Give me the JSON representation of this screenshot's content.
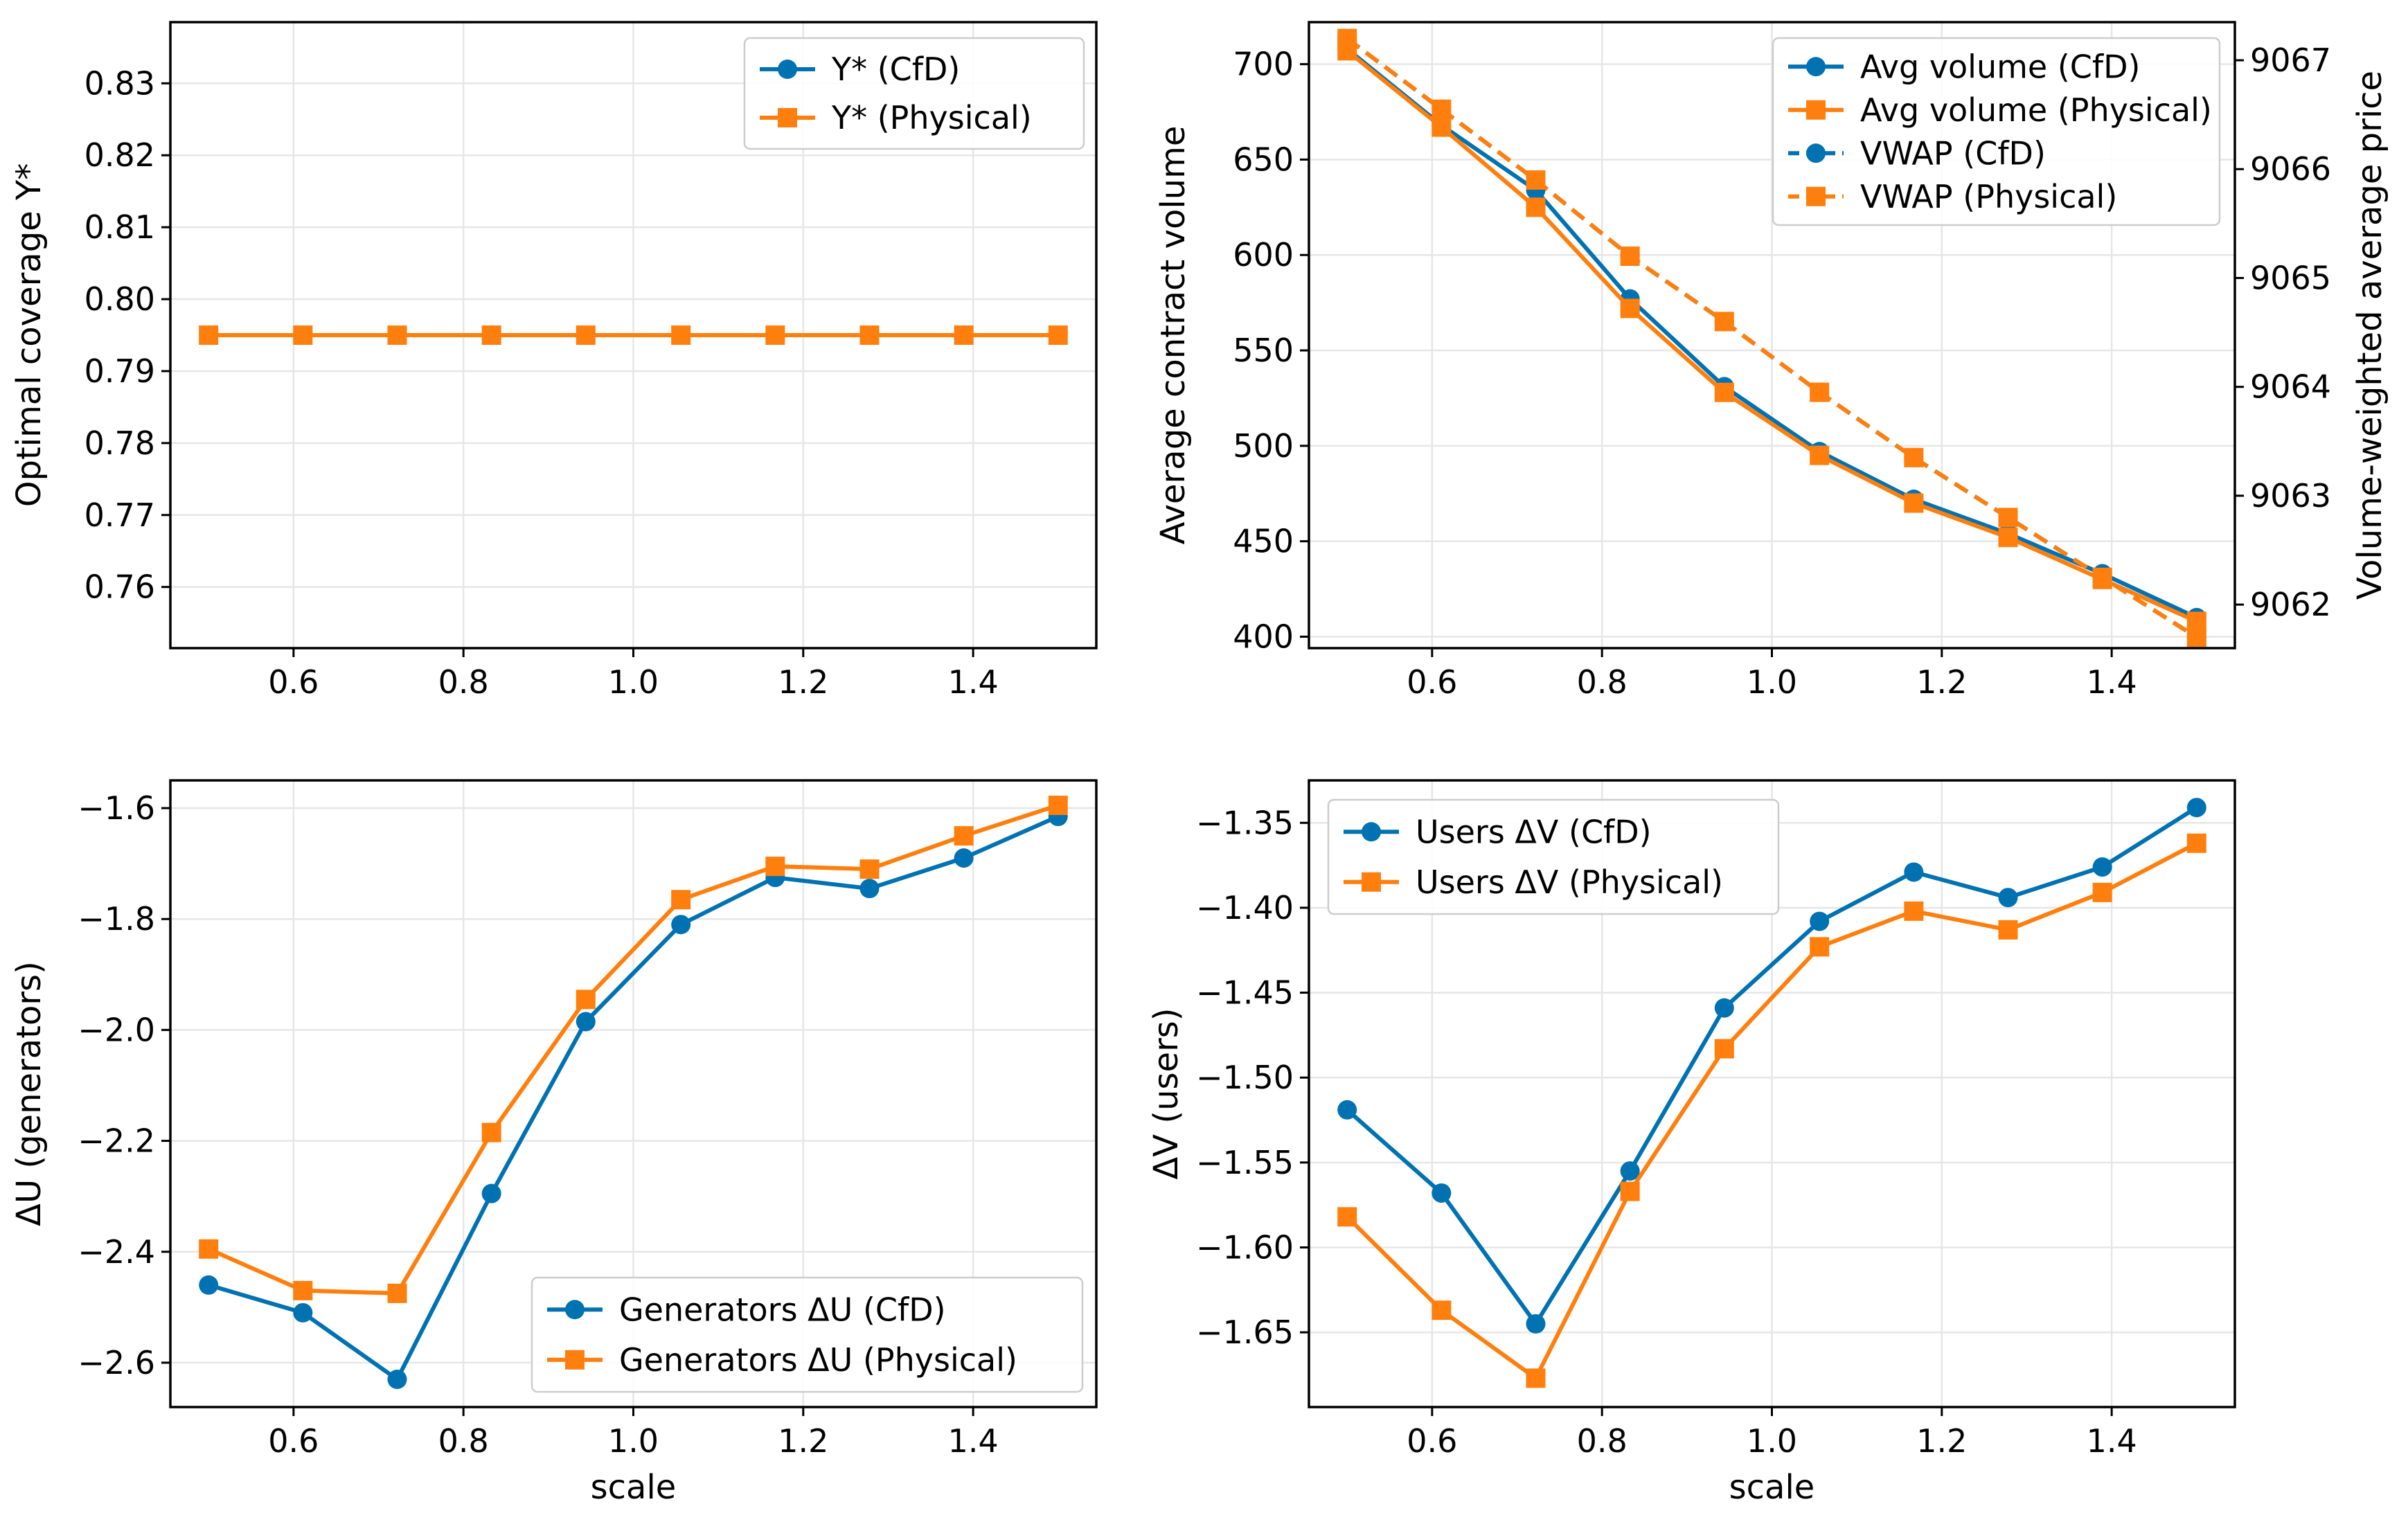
{
  "colors": {
    "cfd": "#0072B2",
    "physical": "#FF7F0E",
    "grid": "#e6e6e6"
  },
  "chart_data": [
    {
      "id": "coverage",
      "type": "line",
      "title": "",
      "xlabel": "",
      "ylabel": "Optimal coverage Y*",
      "xlim": [
        0.455,
        1.545
      ],
      "ylim": [
        0.7515,
        0.8385
      ],
      "xticks": [
        0.6,
        0.8,
        1.0,
        1.2,
        1.4
      ],
      "xtick_labels": [
        "0.6",
        "0.8",
        "1.0",
        "1.2",
        "1.4"
      ],
      "yticks": [
        0.76,
        0.77,
        0.78,
        0.79,
        0.8,
        0.81,
        0.82,
        0.83
      ],
      "ytick_labels": [
        "0.76",
        "0.77",
        "0.78",
        "0.79",
        "0.80",
        "0.81",
        "0.82",
        "0.83"
      ],
      "legend_position": "top-right",
      "x": [
        0.5,
        0.611,
        0.722,
        0.833,
        0.944,
        1.056,
        1.167,
        1.278,
        1.389,
        1.5
      ],
      "series": [
        {
          "name": "Y* (CfD)",
          "color_key": "cfd",
          "marker": "circle",
          "dash": false,
          "axis": "left",
          "values": [
            0.795,
            0.795,
            0.795,
            0.795,
            0.795,
            0.795,
            0.795,
            0.795,
            0.795,
            0.795
          ]
        },
        {
          "name": "Y* (Physical)",
          "color_key": "physical",
          "marker": "square",
          "dash": false,
          "axis": "left",
          "values": [
            0.795,
            0.795,
            0.795,
            0.795,
            0.795,
            0.795,
            0.795,
            0.795,
            0.795,
            0.795
          ]
        }
      ]
    },
    {
      "id": "volume",
      "type": "line",
      "title": "",
      "xlabel": "",
      "ylabel": "Average contract volume",
      "y2label": "Volume-weighted average price",
      "xlim": [
        0.455,
        1.545
      ],
      "ylim": [
        394,
        722
      ],
      "y2lim": [
        9061.6,
        9067.35
      ],
      "xticks": [
        0.6,
        0.8,
        1.0,
        1.2,
        1.4
      ],
      "xtick_labels": [
        "0.6",
        "0.8",
        "1.0",
        "1.2",
        "1.4"
      ],
      "yticks": [
        400,
        450,
        500,
        550,
        600,
        650,
        700
      ],
      "ytick_labels": [
        "400",
        "450",
        "500",
        "550",
        "600",
        "650",
        "700"
      ],
      "y2ticks": [
        9062,
        9063,
        9064,
        9065,
        9066,
        9067
      ],
      "y2tick_labels": [
        "9062",
        "9063",
        "9064",
        "9065",
        "9066",
        "9067"
      ],
      "legend_position": "top-right",
      "x": [
        0.5,
        0.611,
        0.722,
        0.833,
        0.944,
        1.056,
        1.167,
        1.278,
        1.389,
        1.5
      ],
      "series": [
        {
          "name": "Avg volume (CfD)",
          "color_key": "cfd",
          "marker": "circle",
          "dash": false,
          "axis": "left",
          "values": [
            708,
            668,
            634,
            577,
            531,
            497,
            472,
            454,
            433,
            410
          ]
        },
        {
          "name": "Avg volume (Physical)",
          "color_key": "physical",
          "marker": "square",
          "dash": false,
          "axis": "left",
          "values": [
            707,
            667,
            625,
            572,
            528,
            495,
            470,
            452,
            430,
            408
          ]
        },
        {
          "name": "VWAP (CfD)",
          "color_key": "cfd",
          "marker": "circle",
          "dash": true,
          "axis": "right",
          "values": [
            9067.2,
            9066.55,
            9065.9,
            9065.2,
            9064.6,
            9063.95,
            9063.35,
            9062.8,
            9062.25,
            9061.7
          ]
        },
        {
          "name": "VWAP (Physical)",
          "color_key": "physical",
          "marker": "square",
          "dash": true,
          "axis": "right",
          "values": [
            9067.2,
            9066.55,
            9065.9,
            9065.2,
            9064.6,
            9063.95,
            9063.35,
            9062.8,
            9062.25,
            9061.7
          ]
        }
      ]
    },
    {
      "id": "generators",
      "type": "line",
      "title": "",
      "xlabel": "scale",
      "ylabel": "ΔU (generators)",
      "xlim": [
        0.455,
        1.545
      ],
      "ylim": [
        -2.68,
        -1.55
      ],
      "xticks": [
        0.6,
        0.8,
        1.0,
        1.2,
        1.4
      ],
      "xtick_labels": [
        "0.6",
        "0.8",
        "1.0",
        "1.2",
        "1.4"
      ],
      "yticks": [
        -2.6,
        -2.4,
        -2.2,
        -2.0,
        -1.8,
        -1.6
      ],
      "ytick_labels": [
        "−2.6",
        "−2.4",
        "−2.2",
        "−2.0",
        "−1.8",
        "−1.6"
      ],
      "legend_position": "bottom-right",
      "x": [
        0.5,
        0.611,
        0.722,
        0.833,
        0.944,
        1.056,
        1.167,
        1.278,
        1.389,
        1.5
      ],
      "series": [
        {
          "name": "Generators ΔU (CfD)",
          "color_key": "cfd",
          "marker": "circle",
          "dash": false,
          "axis": "left",
          "values": [
            -2.46,
            -2.51,
            -2.63,
            -2.295,
            -1.985,
            -1.81,
            -1.725,
            -1.745,
            -1.69,
            -1.615
          ]
        },
        {
          "name": "Generators ΔU (Physical)",
          "color_key": "physical",
          "marker": "square",
          "dash": false,
          "axis": "left",
          "values": [
            -2.395,
            -2.47,
            -2.475,
            -2.185,
            -1.945,
            -1.765,
            -1.705,
            -1.71,
            -1.65,
            -1.595
          ]
        }
      ]
    },
    {
      "id": "users",
      "type": "line",
      "title": "",
      "xlabel": "scale",
      "ylabel": "ΔV (users)",
      "xlim": [
        0.455,
        1.545
      ],
      "ylim": [
        -1.694,
        -1.325
      ],
      "xticks": [
        0.6,
        0.8,
        1.0,
        1.2,
        1.4
      ],
      "xtick_labels": [
        "0.6",
        "0.8",
        "1.0",
        "1.2",
        "1.4"
      ],
      "yticks": [
        -1.65,
        -1.6,
        -1.55,
        -1.5,
        -1.45,
        -1.4,
        -1.35
      ],
      "ytick_labels": [
        "−1.65",
        "−1.60",
        "−1.55",
        "−1.50",
        "−1.45",
        "−1.40",
        "−1.35"
      ],
      "legend_position": "top-left",
      "x": [
        0.5,
        0.611,
        0.722,
        0.833,
        0.944,
        1.056,
        1.167,
        1.278,
        1.389,
        1.5
      ],
      "series": [
        {
          "name": "Users ΔV (CfD)",
          "color_key": "cfd",
          "marker": "circle",
          "dash": false,
          "axis": "left",
          "values": [
            -1.519,
            -1.568,
            -1.645,
            -1.555,
            -1.459,
            -1.408,
            -1.379,
            -1.394,
            -1.376,
            -1.341
          ]
        },
        {
          "name": "Users ΔV (Physical)",
          "color_key": "physical",
          "marker": "square",
          "dash": false,
          "axis": "left",
          "values": [
            -1.582,
            -1.637,
            -1.677,
            -1.567,
            -1.483,
            -1.423,
            -1.402,
            -1.413,
            -1.391,
            -1.362
          ]
        }
      ]
    }
  ]
}
